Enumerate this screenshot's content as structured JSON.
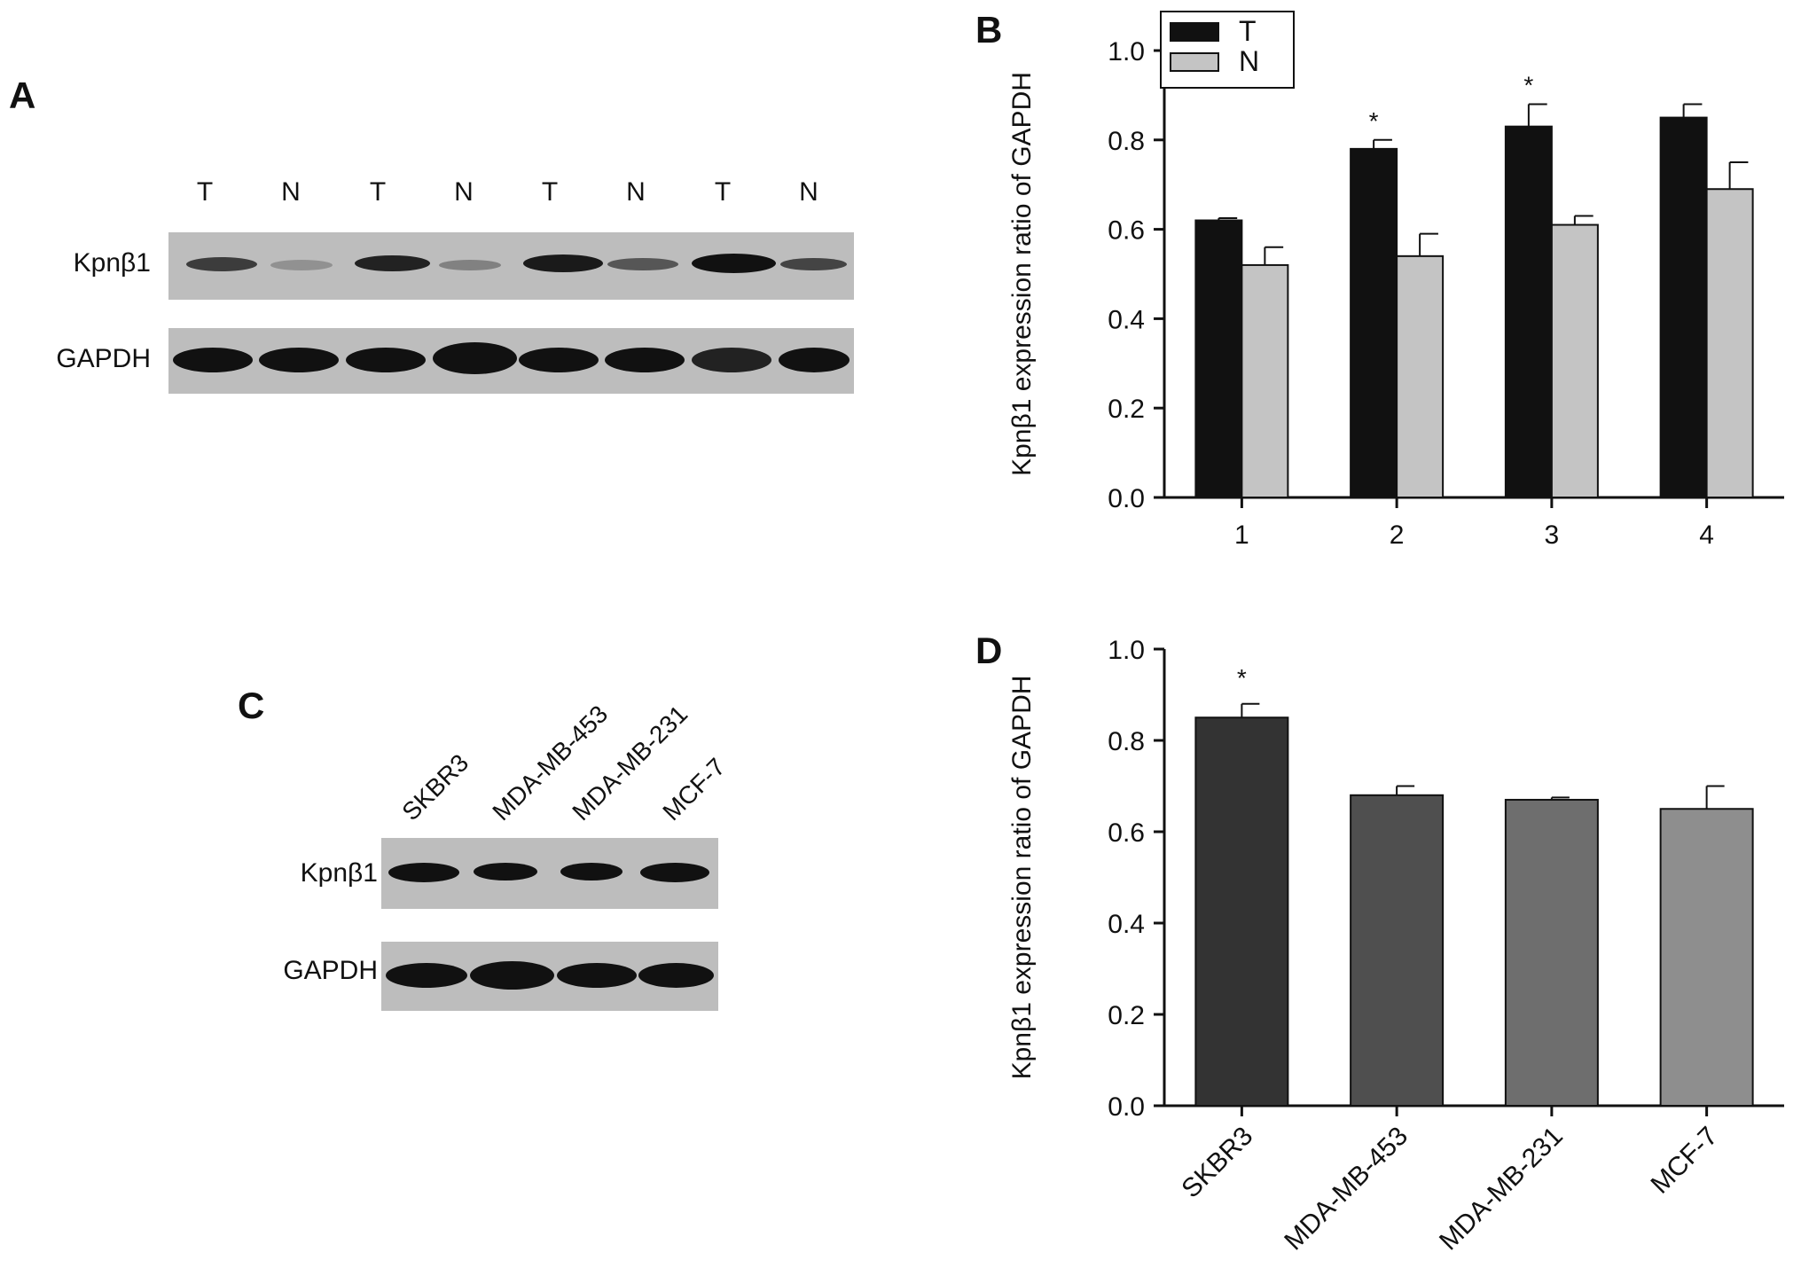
{
  "panels": {
    "a": {
      "letter": "A",
      "lanes": [
        "T",
        "N",
        "T",
        "N",
        "T",
        "N",
        "T",
        "N"
      ],
      "rows": [
        "Kpnβ1",
        "GAPDH"
      ]
    },
    "b": {
      "letter": "B"
    },
    "c": {
      "letter": "C",
      "cells": [
        "SKBR3",
        "MDA-MB-453",
        "MDA-MB-231",
        "MCF-7"
      ],
      "rows": [
        "Kpnβ1",
        "GAPDH"
      ]
    },
    "d": {
      "letter": "D"
    }
  },
  "chart_data": [
    {
      "type": "bar",
      "panel": "B",
      "categories": [
        "1",
        "2",
        "3",
        "4"
      ],
      "ylabel": "Kpnβ1 expression ratio of GAPDH",
      "ylim": [
        0,
        1.0
      ],
      "yticks": [
        "0.0",
        "0.2",
        "0.4",
        "0.6",
        "0.8",
        "1.0"
      ],
      "legend_position": "top-left",
      "series": [
        {
          "name": "T",
          "color": "#111111",
          "values": [
            0.62,
            0.78,
            0.83,
            0.85
          ],
          "errors": [
            0.005,
            0.02,
            0.05,
            0.03
          ]
        },
        {
          "name": "N",
          "color": "#c4c4c4",
          "values": [
            0.52,
            0.54,
            0.61,
            0.69
          ],
          "errors": [
            0.04,
            0.05,
            0.02,
            0.06
          ]
        }
      ],
      "annotations": [
        "*",
        "*"
      ],
      "annotation_categories": [
        "2",
        "3"
      ]
    },
    {
      "type": "bar",
      "panel": "D",
      "categories": [
        "SKBR3",
        "MDA-MB-453",
        "MDA-MB-231",
        "MCF-7"
      ],
      "ylabel": "Kpnβ1 expression ratio of GAPDH",
      "ylim": [
        0,
        1.0
      ],
      "yticks": [
        "0.0",
        "0.2",
        "0.4",
        "0.6",
        "0.8",
        "1.0"
      ],
      "values": [
        0.85,
        0.68,
        0.67,
        0.65
      ],
      "errors": [
        0.03,
        0.02,
        0.005,
        0.05
      ],
      "colors": [
        "#333333",
        "#4f4f4f",
        "#6e6e6e",
        "#8e8e8e"
      ],
      "annotations": [
        "*"
      ],
      "annotation_categories": [
        "SKBR3"
      ]
    }
  ]
}
